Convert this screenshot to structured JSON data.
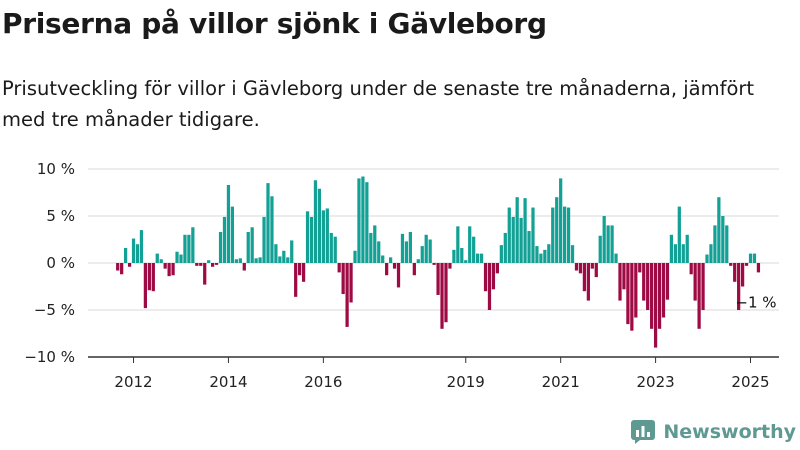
{
  "title": "Priserna på villor sjönk i Gävleborg",
  "subtitle": "Prisutveckling för villor i Gävleborg under de senaste tre månaderna, jämfört med tre månader tidigare.",
  "logo": {
    "text": "Newsworthy",
    "icon": "newsworthy-chart-icon"
  },
  "colors": {
    "positive": "#13a196",
    "negative": "#9e0a44",
    "axis": "#333333",
    "grid": "#d9d9d9",
    "logo": "#5f9a92"
  },
  "chart_data": {
    "type": "bar",
    "title": "",
    "xlabel": "",
    "ylabel": "",
    "x_start": "2011-09",
    "x_end": "2025-03",
    "xlim": [
      "2011-03",
      "2025-12"
    ],
    "ylim": [
      -10,
      10
    ],
    "grid": true,
    "yticks": [
      {
        "value": 10,
        "label": "10 %"
      },
      {
        "value": 5,
        "label": "5 %"
      },
      {
        "value": 0,
        "label": "0 %"
      },
      {
        "value": -5,
        "label": "−5 %"
      },
      {
        "value": -10,
        "label": "−10 %"
      }
    ],
    "xticks": [
      {
        "date": "2012-01",
        "label": "2012"
      },
      {
        "date": "2014-01",
        "label": "2014"
      },
      {
        "date": "2016-01",
        "label": "2016"
      },
      {
        "date": "2019-01",
        "label": "2019"
      },
      {
        "date": "2021-01",
        "label": "2021"
      },
      {
        "date": "2023-01",
        "label": "2023"
      },
      {
        "date": "2025-01",
        "label": "2025"
      }
    ],
    "annotation": {
      "text": "−1 %",
      "date": "2025-03",
      "value": -1
    },
    "values": [
      -0.8,
      -1.2,
      1.6,
      -0.4,
      2.6,
      2.0,
      3.5,
      -4.8,
      -2.9,
      -3.0,
      1.0,
      0.4,
      -0.6,
      -1.4,
      -1.3,
      1.2,
      0.9,
      3.0,
      3.0,
      3.8,
      -0.3,
      -0.3,
      -2.3,
      0.3,
      -0.4,
      -0.2,
      3.3,
      4.9,
      8.3,
      6.0,
      0.4,
      0.5,
      -0.8,
      3.3,
      3.8,
      0.5,
      0.6,
      4.9,
      8.5,
      7.1,
      2.0,
      0.7,
      1.3,
      0.6,
      2.4,
      -3.6,
      -1.3,
      -2.0,
      5.5,
      4.9,
      8.8,
      7.9,
      5.6,
      5.8,
      3.2,
      2.8,
      -1.0,
      -3.3,
      -6.8,
      -4.2,
      1.3,
      9.0,
      9.2,
      8.6,
      3.2,
      4.0,
      2.3,
      0.8,
      -1.3,
      0.6,
      -0.6,
      -2.6,
      3.1,
      2.3,
      3.3,
      -1.3,
      0.4,
      1.8,
      3.0,
      2.5,
      -0.2,
      -3.4,
      -7.0,
      -6.3,
      -0.6,
      1.4,
      3.9,
      1.6,
      0.3,
      3.9,
      2.8,
      1.0,
      1.0,
      -3.0,
      -5.0,
      -2.8,
      -1.1,
      1.9,
      3.2,
      5.9,
      4.9,
      7.0,
      4.8,
      6.9,
      3.4,
      5.9,
      1.8,
      1.0,
      1.4,
      2.0,
      5.9,
      7.0,
      9.0,
      6.0,
      5.9,
      1.9,
      -0.8,
      -1.1,
      -3.0,
      -4.0,
      -0.6,
      -1.5,
      2.9,
      5.0,
      4.0,
      4.0,
      1.0,
      -4.0,
      -2.8,
      -6.5,
      -7.2,
      -5.8,
      -1.0,
      -4.0,
      -5.0,
      -7.0,
      -9.0,
      -7.0,
      -5.8,
      -3.9,
      3.0,
      2.0,
      6.0,
      2.0,
      3.0,
      -1.2,
      -4.0,
      -7.0,
      -5.0,
      0.9,
      2.0,
      4.0,
      7.0,
      5.0,
      4.0,
      -0.3,
      -2.0,
      -5.0,
      -2.5,
      -0.3,
      1.0,
      1.0,
      -1.0
    ]
  }
}
